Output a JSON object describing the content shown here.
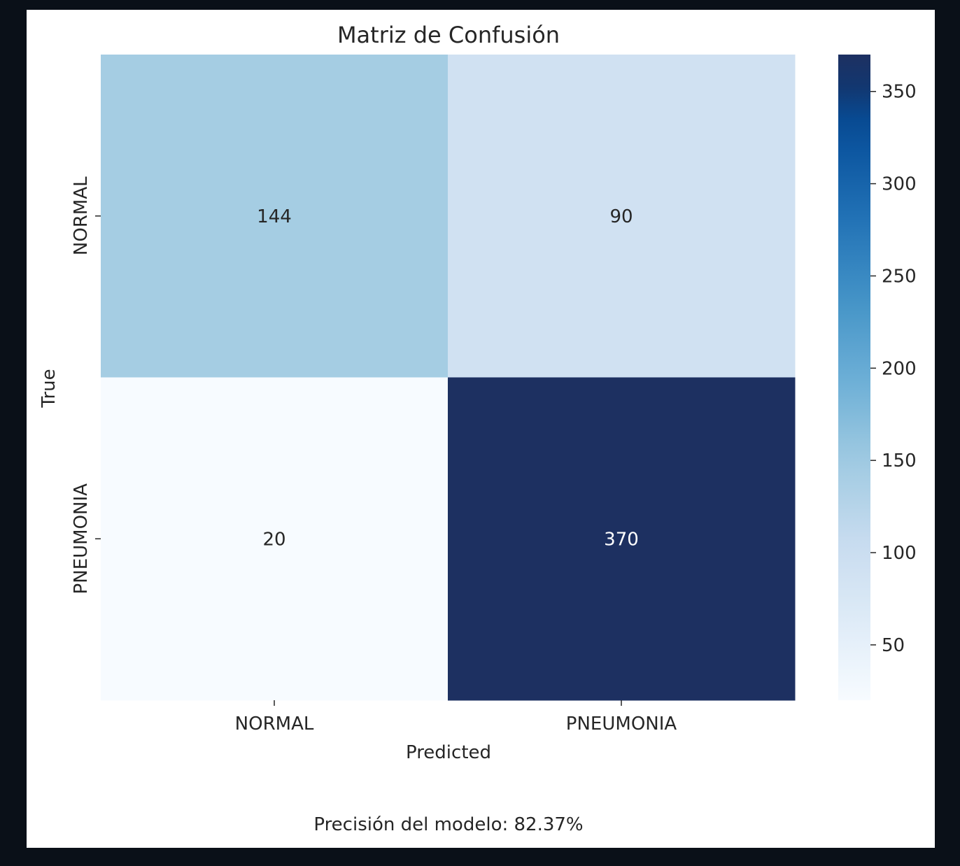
{
  "chart_data": {
    "type": "heatmap",
    "title": "Matriz de Confusión",
    "xlabel": "Predicted",
    "ylabel": "True",
    "x_categories": [
      "NORMAL",
      "PNEUMONIA"
    ],
    "y_categories": [
      "NORMAL",
      "PNEUMONIA"
    ],
    "values": [
      [
        144,
        90
      ],
      [
        20,
        370
      ]
    ],
    "colormap": "Blues",
    "vmin": 20,
    "vmax": 370,
    "colorbar_ticks": [
      50,
      100,
      150,
      200,
      250,
      300,
      350
    ],
    "colorbar_tick_labels": [
      "50",
      "100",
      "150",
      "200",
      "250",
      "300",
      "350"
    ],
    "annotation_dark_color": "#262626",
    "annotation_light_color": "#ffffff",
    "grid": false,
    "legend": "colorbar-right"
  },
  "footer": {
    "accuracy_text": "Precisión del modelo: 82.37%"
  }
}
